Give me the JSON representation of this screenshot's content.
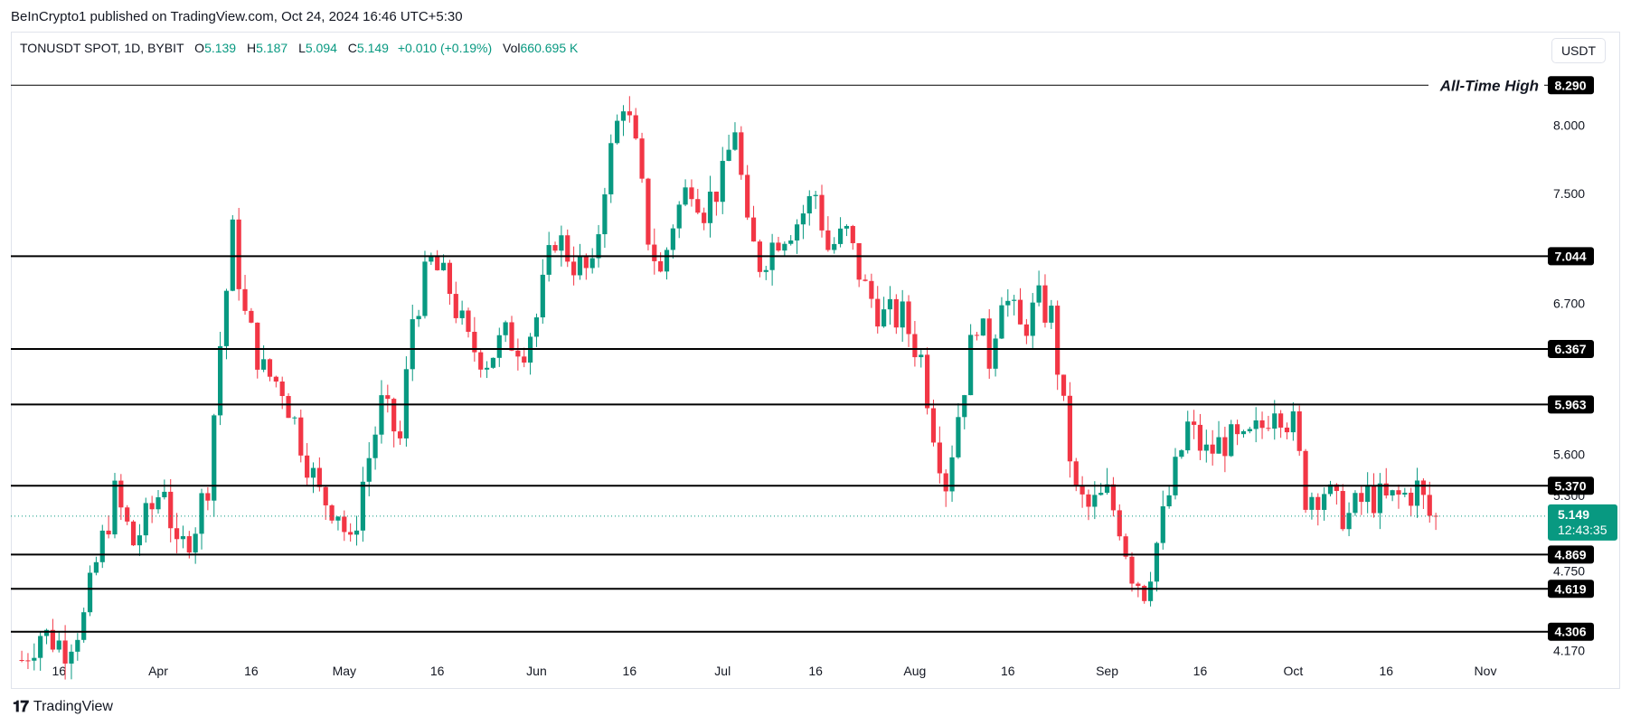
{
  "header": {
    "publisher": "BeInCrypto1 published on TradingView.com, Oct 24, 2024 16:46 UTC+5:30",
    "symbol": "TONUSDT SPOT, 1D, BYBIT",
    "open_label": "O",
    "open_value": "5.139",
    "high_label": "H",
    "high_value": "5.187",
    "low_label": "L",
    "low_value": "5.094",
    "close_label": "C",
    "close_value": "5.149",
    "change_value": "+0.010 (+0.19%)",
    "vol_label": "Vol",
    "vol_value": "660.695 K",
    "currency": "USDT"
  },
  "footer": {
    "brand": "TradingView",
    "logo_icon": "tradingview-logo-icon"
  },
  "colors": {
    "up": "#089981",
    "down": "#f23645",
    "level": "#000000",
    "price_line": "#089981"
  },
  "chart_data": {
    "type": "candlestick",
    "x_tick_labels": [
      "16",
      "Apr",
      "16",
      "May",
      "16",
      "Jun",
      "16",
      "Jul",
      "16",
      "Aug",
      "16",
      "Sep",
      "16",
      "Oct",
      "16",
      "Nov"
    ],
    "y_tick_labels": [
      "8.000",
      "7.500",
      "6.700",
      "5.600",
      "5.300",
      "4.750",
      "4.170"
    ],
    "y_ticks": [
      8.0,
      7.5,
      6.7,
      5.6,
      5.3,
      4.75,
      4.17
    ],
    "y_range": [
      4.1,
      8.45
    ],
    "all_time_high_label": "All-Time High",
    "levels": [
      {
        "value": 8.29,
        "label": "8.290"
      },
      {
        "value": 7.044,
        "label": "7.044"
      },
      {
        "value": 6.367,
        "label": "6.367"
      },
      {
        "value": 5.963,
        "label": "5.963"
      },
      {
        "value": 5.37,
        "label": "5.370"
      },
      {
        "value": 4.869,
        "label": "4.869"
      },
      {
        "value": 4.619,
        "label": "4.619"
      },
      {
        "value": 4.306,
        "label": "4.306"
      }
    ],
    "current_price": {
      "value": 5.149,
      "label": "5.149",
      "countdown": "12:43:35"
    },
    "close_points": [
      [
        "Mar 10",
        4.1
      ],
      [
        "Mar 13",
        4.3
      ],
      [
        "Mar 17",
        4.2
      ],
      [
        "Mar 20",
        4.4
      ],
      [
        "Mar 22",
        4.8
      ],
      [
        "Mar 25",
        5.3
      ],
      [
        "Mar 28",
        4.95
      ],
      [
        "Mar 31",
        5.2
      ],
      [
        "Apr 2",
        5.4
      ],
      [
        "Apr 4",
        4.85
      ],
      [
        "Apr 7",
        5.1
      ],
      [
        "Apr 9",
        5.4
      ],
      [
        "Apr 11",
        6.4
      ],
      [
        "Apr 13",
        7.2
      ],
      [
        "Apr 15",
        6.6
      ],
      [
        "Apr 18",
        6.2
      ],
      [
        "Apr 21",
        6.1
      ],
      [
        "Apr 24",
        5.7
      ],
      [
        "Apr 27",
        5.3
      ],
      [
        "Apr 30",
        5.2
      ],
      [
        "May 2",
        4.9
      ],
      [
        "May 4",
        5.4
      ],
      [
        "May 7",
        5.95
      ],
      [
        "May 10",
        5.7
      ],
      [
        "May 12",
        6.6
      ],
      [
        "May 15",
        7.0
      ],
      [
        "May 18",
        6.8
      ],
      [
        "May 21",
        6.4
      ],
      [
        "May 24",
        6.3
      ],
      [
        "May 27",
        6.45
      ],
      [
        "May 30",
        6.4
      ],
      [
        "Jun 1",
        6.6
      ],
      [
        "Jun 4",
        7.2
      ],
      [
        "Jun 7",
        7.0
      ],
      [
        "Jun 10",
        6.9
      ],
      [
        "Jun 12",
        7.6
      ],
      [
        "Jun 15",
        8.2
      ],
      [
        "Jun 17",
        7.8
      ],
      [
        "Jun 19",
        7.2
      ],
      [
        "Jun 21",
        6.9
      ],
      [
        "Jun 23",
        7.3
      ],
      [
        "Jun 26",
        7.6
      ],
      [
        "Jun 28",
        7.4
      ],
      [
        "Jul 1",
        7.6
      ],
      [
        "Jul 3",
        8.0
      ],
      [
        "Jul 5",
        7.2
      ],
      [
        "Jul 7",
        7.0
      ],
      [
        "Jul 10",
        7.2
      ],
      [
        "Jul 13",
        7.3
      ],
      [
        "Jul 16",
        7.5
      ],
      [
        "Jul 18",
        7.1
      ],
      [
        "Jul 21",
        7.2
      ],
      [
        "Jul 24",
        6.8
      ],
      [
        "Jul 27",
        6.6
      ],
      [
        "Jul 30",
        6.6
      ],
      [
        "Aug 2",
        6.3
      ],
      [
        "Aug 4",
        5.8
      ],
      [
        "Aug 6",
        5.4
      ],
      [
        "Aug 8",
        5.9
      ],
      [
        "Aug 11",
        6.6
      ],
      [
        "Aug 13",
        6.3
      ],
      [
        "Aug 15",
        6.8
      ],
      [
        "Aug 18",
        6.5
      ],
      [
        "Aug 21",
        6.7
      ],
      [
        "Aug 23",
        6.6
      ],
      [
        "Aug 25",
        5.9
      ],
      [
        "Aug 27",
        5.3
      ],
      [
        "Aug 29",
        5.2
      ],
      [
        "Sep 1",
        5.3
      ],
      [
        "Sep 3",
        5.1
      ],
      [
        "Sep 5",
        4.75
      ],
      [
        "Sep 7",
        4.62
      ],
      [
        "Sep 9",
        4.95
      ],
      [
        "Sep 11",
        5.3
      ],
      [
        "Sep 14",
        5.8
      ],
      [
        "Sep 17",
        5.6
      ],
      [
        "Sep 20",
        5.7
      ],
      [
        "Sep 23",
        5.65
      ],
      [
        "Sep 26",
        5.8
      ],
      [
        "Sep 28",
        6.0
      ],
      [
        "Oct 1",
        5.8
      ],
      [
        "Oct 3",
        5.3
      ],
      [
        "Oct 6",
        5.35
      ],
      [
        "Oct 8",
        5.2
      ],
      [
        "Oct 10",
        5.15
      ],
      [
        "Oct 13",
        5.3
      ],
      [
        "Oct 16",
        5.25
      ],
      [
        "Oct 19",
        5.3
      ],
      [
        "Oct 21",
        5.35
      ],
      [
        "Oct 23",
        5.15
      ],
      [
        "Oct 24",
        5.149
      ]
    ]
  }
}
